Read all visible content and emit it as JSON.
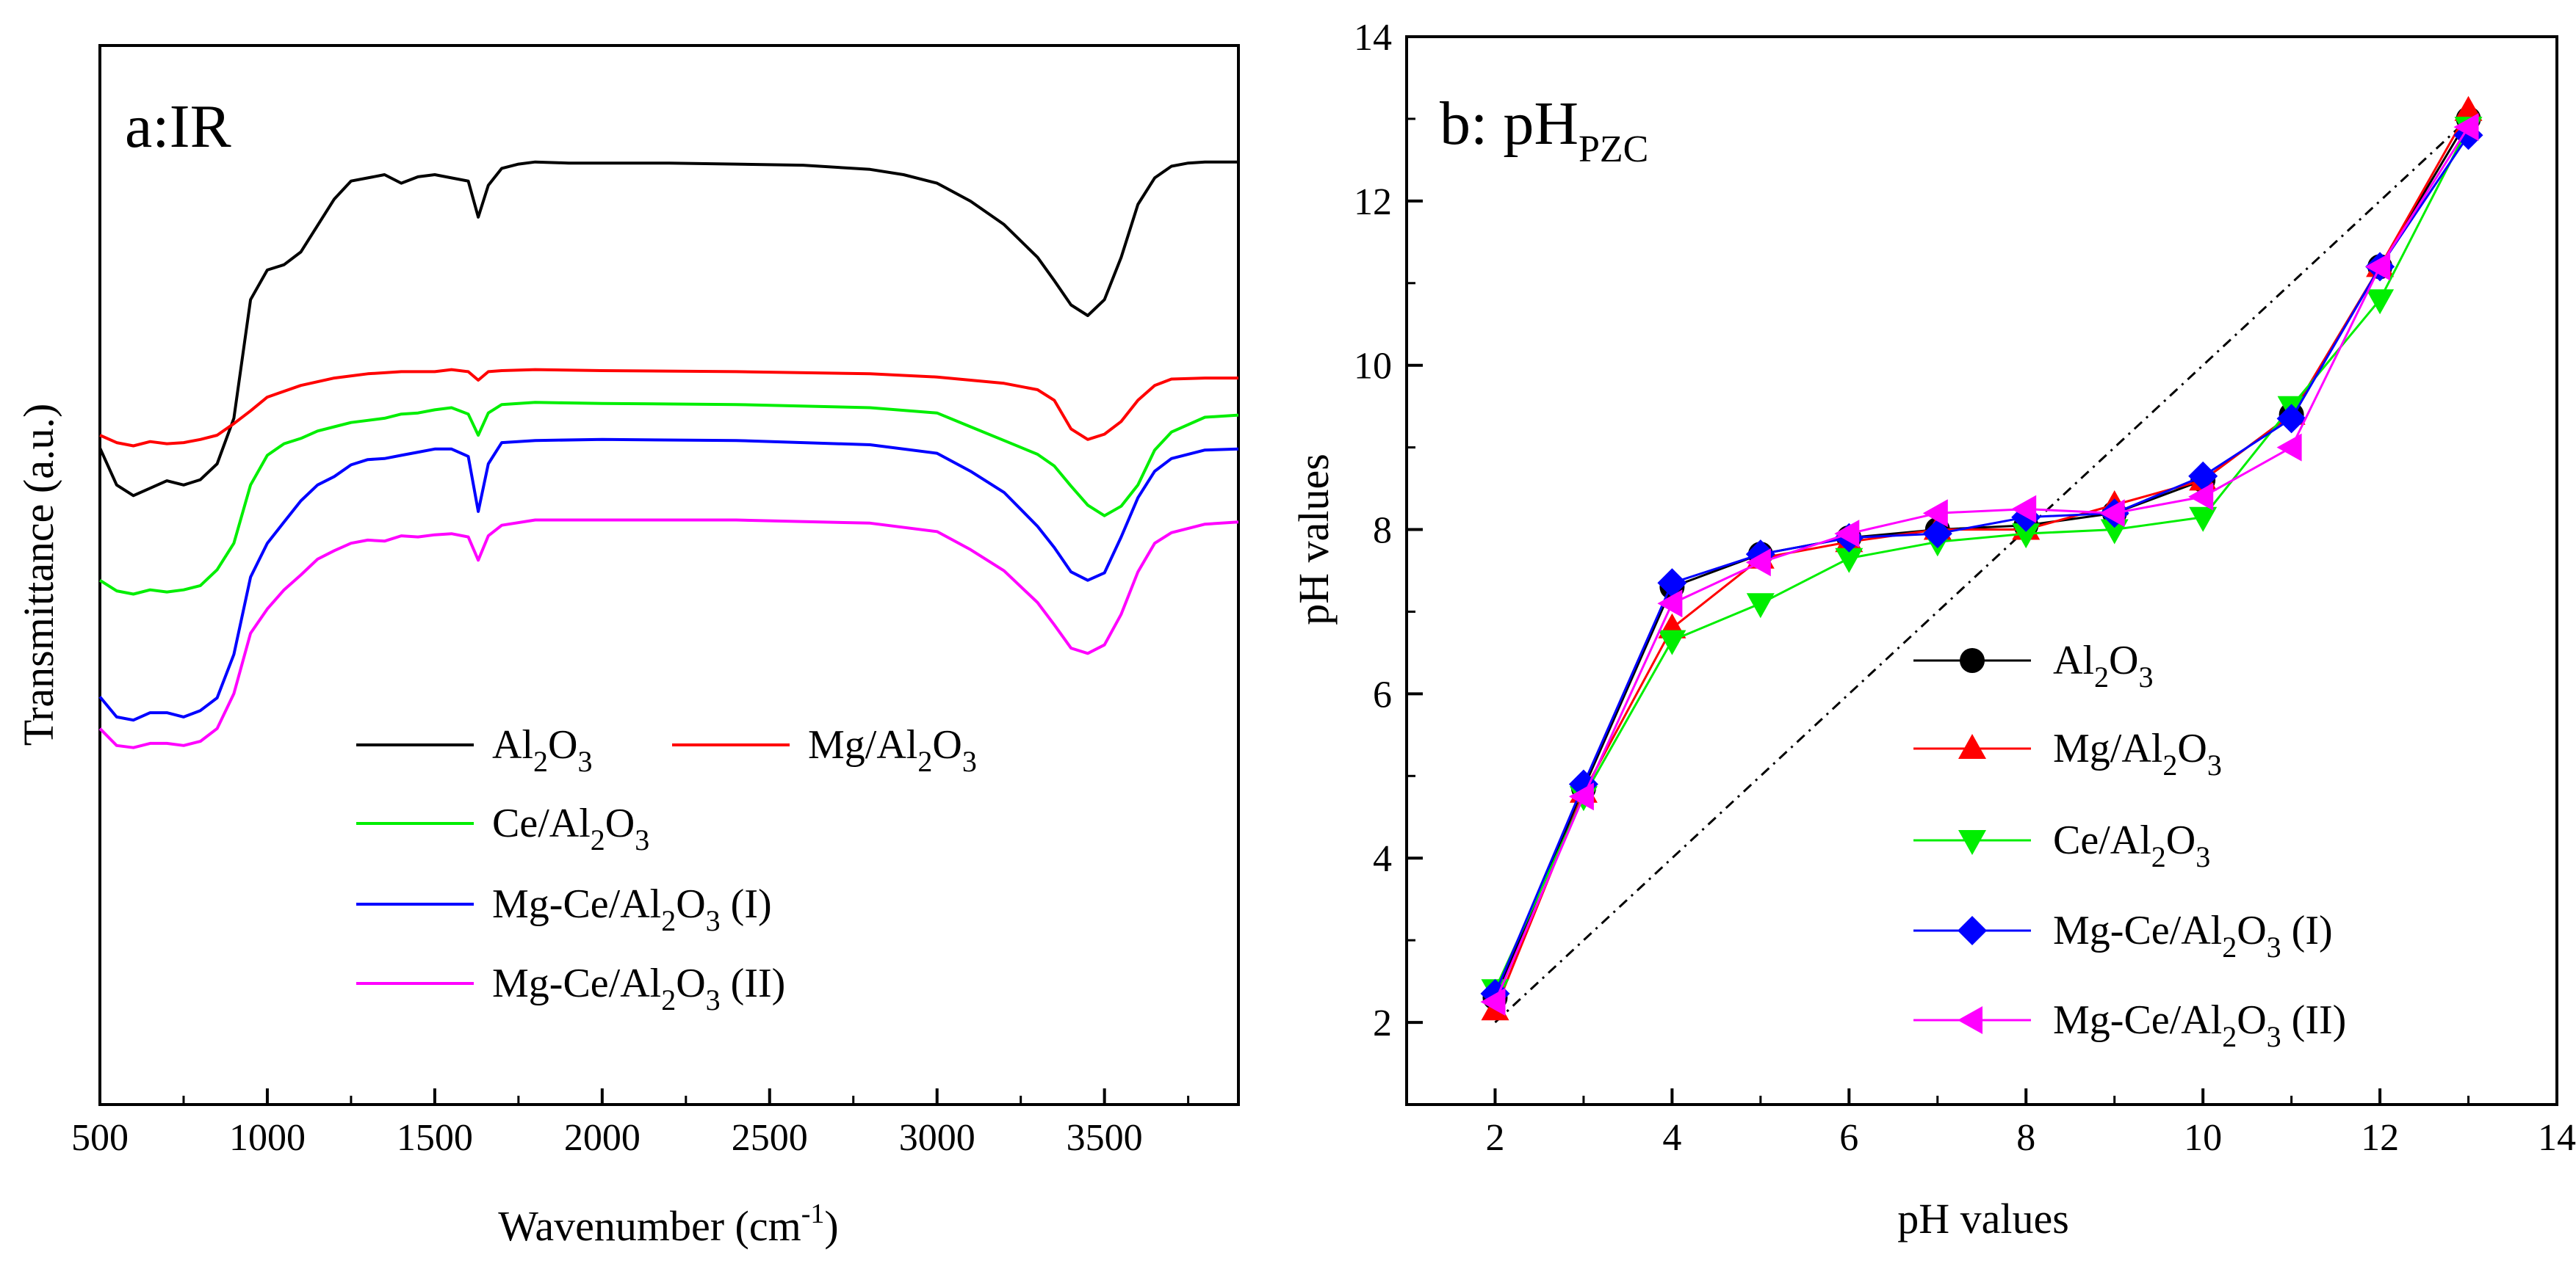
{
  "figure": {
    "panels": 2
  },
  "chart_data": [
    {
      "panel": "a",
      "type": "line",
      "title": "a:IR",
      "xlabel": "Wavenumber (cm",
      "xlabel_sup": "-1",
      "xlabel_end": ")",
      "ylabel": "Transmittance (a.u.)",
      "xlim": [
        500,
        3900
      ],
      "ylim": [
        0,
        100
      ],
      "yticks_visible": false,
      "xticks": [
        500,
        1000,
        1500,
        2000,
        2500,
        3000,
        3500
      ],
      "series": [
        {
          "name": "Al2O3",
          "label_parts": [
            "Al",
            "2",
            "O",
            "3",
            ""
          ],
          "color": "#000000",
          "x": [
            500,
            550,
            600,
            650,
            700,
            750,
            800,
            850,
            900,
            950,
            1000,
            1050,
            1100,
            1150,
            1200,
            1250,
            1300,
            1350,
            1400,
            1450,
            1500,
            1550,
            1600,
            1630,
            1660,
            1700,
            1750,
            1800,
            1900,
            2000,
            2200,
            2400,
            2600,
            2800,
            2900,
            3000,
            3100,
            3200,
            3300,
            3350,
            3400,
            3450,
            3500,
            3550,
            3600,
            3650,
            3700,
            3750,
            3800,
            3900
          ],
          "y": [
            62.0,
            58.5,
            57.5,
            58.2,
            58.9,
            58.5,
            59.0,
            60.5,
            64.8,
            76.0,
            78.8,
            79.3,
            80.5,
            83.0,
            85.5,
            87.2,
            87.5,
            87.8,
            87.0,
            87.6,
            87.8,
            87.5,
            87.2,
            83.8,
            86.8,
            88.4,
            88.8,
            89.0,
            88.9,
            88.9,
            88.9,
            88.8,
            88.7,
            88.3,
            87.8,
            87.0,
            85.3,
            83.1,
            80.0,
            77.8,
            75.5,
            74.5,
            76.0,
            80.0,
            85.0,
            87.5,
            88.6,
            88.9,
            89.0,
            89.0
          ]
        },
        {
          "name": "Mg/Al2O3",
          "label_parts": [
            "Mg/Al",
            "2",
            "O",
            "3",
            ""
          ],
          "color": "#ff0000",
          "x": [
            500,
            550,
            600,
            650,
            700,
            750,
            800,
            850,
            900,
            950,
            1000,
            1100,
            1200,
            1300,
            1400,
            1500,
            1550,
            1600,
            1630,
            1660,
            1700,
            1800,
            2000,
            2400,
            2800,
            3000,
            3200,
            3300,
            3350,
            3400,
            3450,
            3500,
            3550,
            3600,
            3650,
            3700,
            3800,
            3900
          ],
          "y": [
            63.2,
            62.5,
            62.2,
            62.6,
            62.4,
            62.5,
            62.8,
            63.2,
            64.3,
            65.5,
            66.8,
            67.9,
            68.6,
            69.0,
            69.2,
            69.2,
            69.4,
            69.2,
            68.4,
            69.2,
            69.3,
            69.4,
            69.3,
            69.2,
            69.0,
            68.7,
            68.1,
            67.5,
            66.5,
            63.8,
            62.8,
            63.3,
            64.5,
            66.5,
            67.9,
            68.5,
            68.6,
            68.6
          ]
        },
        {
          "name": "Ce/Al2O3",
          "label_parts": [
            "Ce/Al",
            "2",
            "O",
            "3",
            ""
          ],
          "color": "#00ee00",
          "x": [
            500,
            550,
            600,
            650,
            700,
            750,
            800,
            850,
            900,
            950,
            1000,
            1050,
            1100,
            1150,
            1200,
            1250,
            1300,
            1350,
            1400,
            1450,
            1500,
            1550,
            1600,
            1630,
            1660,
            1700,
            1800,
            2000,
            2400,
            2800,
            3000,
            3100,
            3200,
            3300,
            3350,
            3400,
            3450,
            3500,
            3550,
            3600,
            3650,
            3700,
            3800,
            3900
          ],
          "y": [
            49.5,
            48.5,
            48.2,
            48.6,
            48.4,
            48.6,
            49.0,
            50.5,
            53.0,
            58.5,
            61.3,
            62.4,
            62.9,
            63.6,
            64.0,
            64.4,
            64.6,
            64.8,
            65.2,
            65.3,
            65.6,
            65.8,
            65.2,
            63.2,
            65.3,
            66.1,
            66.3,
            66.2,
            66.1,
            65.8,
            65.3,
            64.0,
            62.7,
            61.4,
            60.3,
            58.4,
            56.6,
            55.6,
            56.5,
            58.5,
            61.8,
            63.5,
            64.9,
            65.1
          ]
        },
        {
          "name": "Mg-Ce/Al2O3 (I)",
          "label_parts": [
            "Mg-Ce/Al",
            "2",
            "O",
            "3",
            " (I)"
          ],
          "color": "#0000ff",
          "x": [
            500,
            550,
            600,
            650,
            700,
            750,
            800,
            850,
            900,
            950,
            1000,
            1050,
            1100,
            1150,
            1200,
            1250,
            1300,
            1350,
            1400,
            1450,
            1500,
            1550,
            1600,
            1630,
            1660,
            1700,
            1800,
            2000,
            2400,
            2800,
            3000,
            3100,
            3200,
            3300,
            3350,
            3400,
            3450,
            3500,
            3550,
            3600,
            3650,
            3700,
            3800,
            3900
          ],
          "y": [
            38.5,
            36.6,
            36.3,
            37.0,
            37.0,
            36.6,
            37.2,
            38.4,
            42.5,
            49.8,
            53.0,
            55.0,
            57.0,
            58.5,
            59.3,
            60.4,
            60.9,
            61.0,
            61.3,
            61.6,
            61.9,
            61.9,
            61.2,
            56.0,
            60.5,
            62.5,
            62.7,
            62.8,
            62.7,
            62.3,
            61.5,
            59.8,
            57.8,
            54.6,
            52.6,
            50.3,
            49.5,
            50.2,
            53.6,
            57.3,
            59.8,
            61.0,
            61.8,
            61.9
          ]
        },
        {
          "name": "Mg-Ce/Al2O3 (II)",
          "label_parts": [
            "Mg-Ce/Al",
            "2",
            "O",
            "3",
            " (II)"
          ],
          "color": "#ff00ff",
          "x": [
            500,
            550,
            600,
            650,
            700,
            750,
            800,
            850,
            900,
            950,
            1000,
            1050,
            1100,
            1150,
            1200,
            1250,
            1300,
            1350,
            1400,
            1450,
            1500,
            1550,
            1600,
            1630,
            1660,
            1700,
            1800,
            2000,
            2400,
            2800,
            3000,
            3100,
            3200,
            3300,
            3350,
            3400,
            3450,
            3500,
            3550,
            3600,
            3650,
            3700,
            3800,
            3900
          ],
          "y": [
            35.5,
            33.9,
            33.7,
            34.1,
            34.1,
            33.9,
            34.3,
            35.5,
            38.8,
            44.5,
            46.8,
            48.6,
            50.0,
            51.5,
            52.3,
            53.0,
            53.3,
            53.2,
            53.7,
            53.6,
            53.8,
            53.9,
            53.6,
            51.4,
            53.7,
            54.7,
            55.2,
            55.2,
            55.2,
            54.9,
            54.1,
            52.4,
            50.4,
            47.4,
            45.3,
            43.1,
            42.6,
            43.4,
            46.3,
            50.3,
            53.0,
            54.0,
            54.8,
            55.0
          ]
        }
      ]
    },
    {
      "panel": "b",
      "type": "line",
      "title": "b: pH",
      "title_sub": "PZC",
      "xlabel": "pH values",
      "ylabel": "pH values",
      "xlim": [
        1,
        14
      ],
      "ylim": [
        1,
        14
      ],
      "xticks": [
        2,
        4,
        6,
        8,
        10,
        12,
        14
      ],
      "yticks": [
        2,
        4,
        6,
        8,
        10,
        12,
        14
      ],
      "reference_line": {
        "x": [
          2,
          13
        ],
        "y": [
          2,
          13
        ],
        "style": "dash-dot"
      },
      "x": [
        2,
        3,
        4,
        5,
        6,
        7,
        8,
        9,
        10,
        11,
        12,
        13
      ],
      "series": [
        {
          "name": "Al2O3",
          "label_parts": [
            "Al",
            "2",
            "O",
            "3",
            ""
          ],
          "color": "#000000",
          "marker": "circle",
          "y": [
            2.3,
            4.85,
            7.3,
            7.7,
            7.9,
            8.0,
            8.05,
            8.2,
            8.6,
            9.4,
            11.2,
            13.0
          ]
        },
        {
          "name": "Mg/Al2O3",
          "label_parts": [
            "Mg/Al",
            "2",
            "O",
            "3",
            ""
          ],
          "color": "#ff0000",
          "marker": "triangle-up",
          "y": [
            2.15,
            4.8,
            6.8,
            7.65,
            7.85,
            8.0,
            8.0,
            8.3,
            8.6,
            9.4,
            11.2,
            13.1
          ]
        },
        {
          "name": "Ce/Al2O3",
          "label_parts": [
            "Ce/Al",
            "2",
            "O",
            "3",
            ""
          ],
          "color": "#00ee00",
          "marker": "triangle-down",
          "y": [
            2.4,
            4.75,
            6.65,
            7.1,
            7.65,
            7.85,
            7.95,
            8.0,
            8.15,
            9.5,
            10.8,
            12.9
          ]
        },
        {
          "name": "Mg-Ce/Al2O3 (I)",
          "label_parts": [
            "Mg-Ce/Al",
            "2",
            "O",
            "3",
            " (I)"
          ],
          "color": "#0000ff",
          "marker": "diamond",
          "y": [
            2.35,
            4.9,
            7.35,
            7.7,
            7.9,
            7.95,
            8.15,
            8.2,
            8.65,
            9.35,
            11.2,
            12.8
          ]
        },
        {
          "name": "Mg-Ce/Al2O3 (II)",
          "label_parts": [
            "Mg-Ce/Al",
            "2",
            "O",
            "3",
            " (II)"
          ],
          "color": "#ff00ff",
          "marker": "triangle-left",
          "y": [
            2.25,
            4.75,
            7.1,
            7.6,
            7.95,
            8.2,
            8.25,
            8.2,
            8.4,
            9.0,
            11.2,
            12.9
          ]
        }
      ]
    }
  ]
}
